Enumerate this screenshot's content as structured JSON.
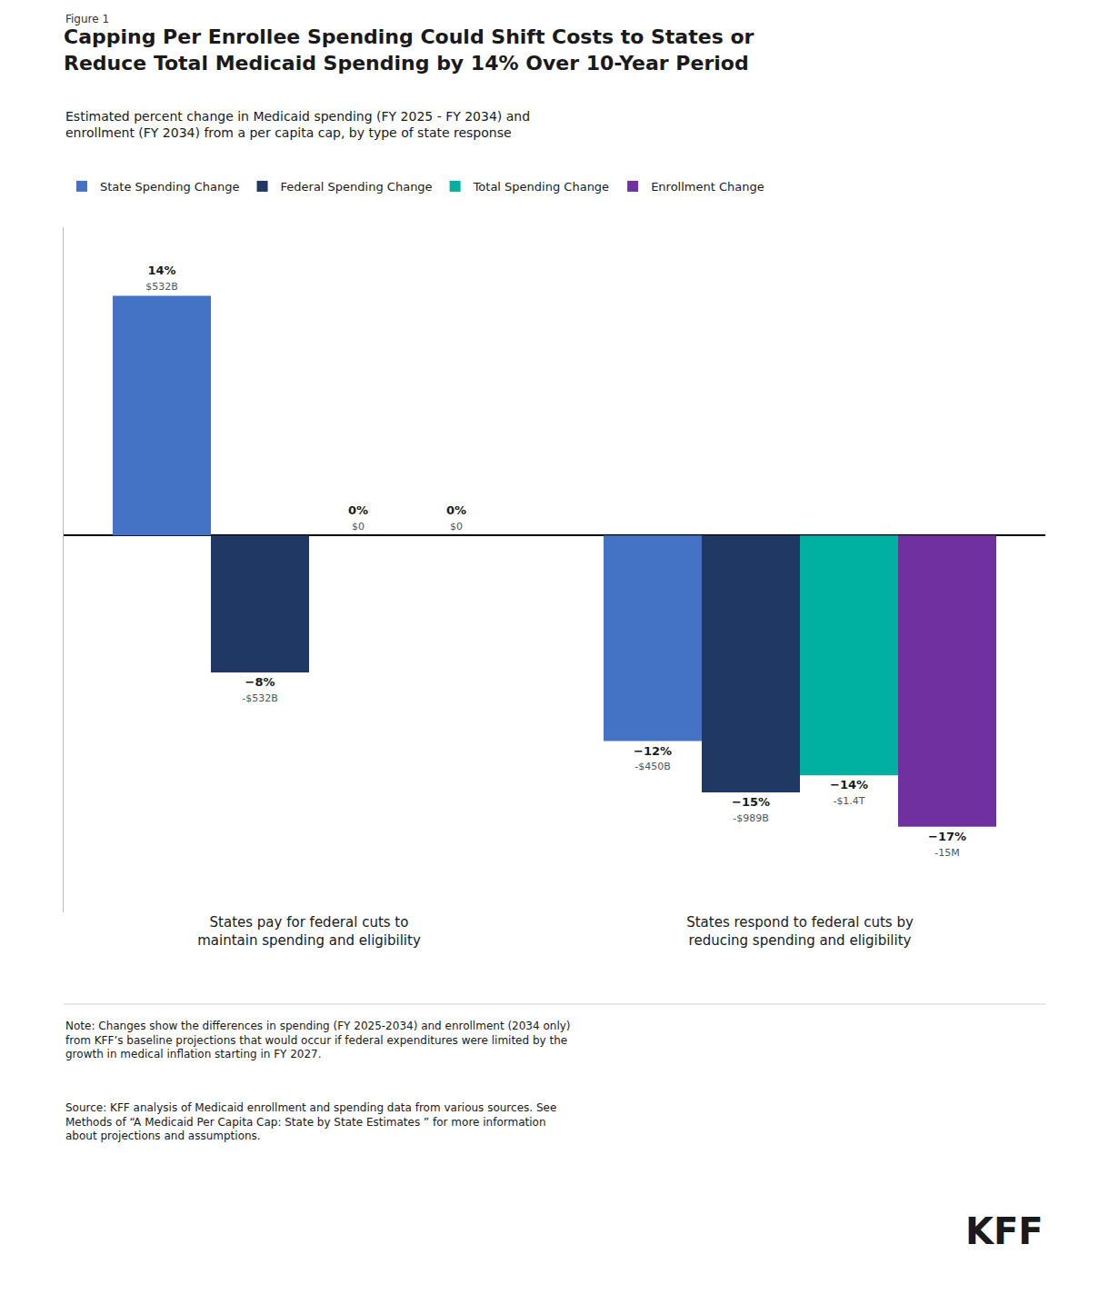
{
  "chart_data": {
    "type": "bar",
    "figure_label": "Figure 1",
    "title": "Capping Per Enrollee Spending Could Shift Costs to States or\nReduce Total Medicaid Spending by 14% Over 10-Year Period",
    "subtitle": "Estimated percent change in Medicaid spending (FY 2025 - FY 2034) and\nenrollment (FY 2034) from a per capita cap, by type of state response",
    "categories": [
      "States pay for federal cuts to\nmaintain spending and eligibility",
      "States respond to federal cuts by\nreducing spending and eligibility"
    ],
    "series": [
      {
        "name": "State Spending Change",
        "color": "#4472C4",
        "values": [
          14,
          -12
        ],
        "value_labels": [
          "14%",
          "−12%"
        ],
        "amount_labels": [
          "$532B",
          "-$450B"
        ]
      },
      {
        "name": "Federal Spending Change",
        "color": "#1F3864",
        "values": [
          -8,
          -15
        ],
        "value_labels": [
          "−8%",
          "−15%"
        ],
        "amount_labels": [
          "-$532B",
          "-$989B"
        ]
      },
      {
        "name": "Total Spending Change",
        "color": "#00B0A0",
        "values": [
          0,
          -14
        ],
        "value_labels": [
          "0%",
          "−14%"
        ],
        "amount_labels": [
          "$0",
          "-$1.4T"
        ]
      },
      {
        "name": "Enrollment Change",
        "color": "#7030A0",
        "values": [
          0,
          -17
        ],
        "value_labels": [
          "0%",
          "−17%"
        ],
        "amount_labels": [
          "$0",
          "-15M"
        ]
      }
    ],
    "ylim": [
      -22,
      18
    ],
    "yticks": [],
    "tick_labels": "x",
    "grid": false,
    "legend": "top",
    "data_labels": true,
    "note": "Note: Changes show the differences in spending (FY 2025-2034) and enrollment (2034 only)\nfrom KFF’s baseline projections that would occur if federal expenditures were limited by the\ngrowth in medical inflation starting in FY 2027.",
    "source": "Source: KFF analysis of Medicaid enrollment and spending data from various sources. See\nMethods of “A Medicaid Per Capita Cap: State by State Estimates ” for more information\nabout projections and assumptions.",
    "logo": "KFF"
  }
}
